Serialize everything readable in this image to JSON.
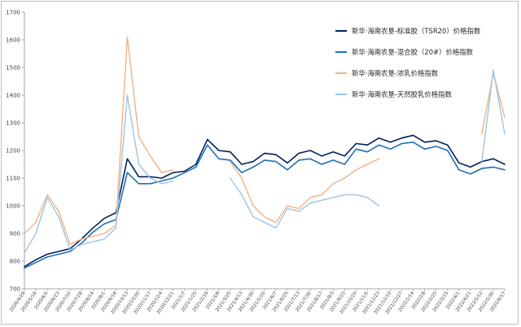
{
  "chart_data": {
    "type": "line",
    "title": "",
    "xlabel": "",
    "ylabel": "",
    "ylim": [
      700,
      1700
    ],
    "yticks": [
      700,
      800,
      900,
      1000,
      1100,
      1200,
      1300,
      1400,
      1500,
      1600,
      1700
    ],
    "grid": false,
    "legend_position": "top-right",
    "x_tick_labels": [
      "2020/4/28",
      "2020/5/18",
      "2020/6/5",
      "2020/6/23",
      "2020/7/10",
      "2020/7/28",
      "2020/8/14",
      "2020/9/1",
      "2020/9/18",
      "2020/10/13",
      "2020/10/30",
      "2020/11/17",
      "2020/12/4",
      "2020/12/21",
      "2021/1/7",
      "2021/1/25",
      "2021/2/18",
      "2021/3/8",
      "2021/3/25",
      "2021/4/13",
      "2021/4/30",
      "2021/5/20",
      "2021/6/7",
      "2021/6/25",
      "2021/7/13",
      "2021/7/30",
      "2021/8/17",
      "2021/9/3",
      "2021/9/23",
      "2021/10/20",
      "2021/11/5",
      "2021/11/23",
      "2021/12/10",
      "2021/12/27",
      "2022/1/14",
      "2022/2/8",
      "2022/2/25",
      "2022/3/15",
      "2022/4/1",
      "2022/4/21",
      "2022/5/12",
      "2022/5/30",
      "2022/6/17"
    ],
    "x_index_range": [
      0,
      42
    ],
    "series": [
      {
        "name": "新华·海南农垦-标准胶（TSR20）价格指数",
        "color": "#002060",
        "x": [
          0,
          1,
          2,
          3,
          4,
          5,
          6,
          7,
          8,
          9,
          10,
          11,
          12,
          13,
          14,
          15,
          16,
          17,
          18,
          19,
          20,
          21,
          22,
          23,
          24,
          25,
          26,
          27,
          28,
          29,
          30,
          31,
          32,
          33,
          34,
          35,
          36,
          37,
          38,
          39,
          40,
          41,
          42
        ],
        "values": [
          780,
          805,
          825,
          835,
          845,
          880,
          920,
          955,
          975,
          1170,
          1105,
          1105,
          1100,
          1120,
          1125,
          1150,
          1240,
          1200,
          1195,
          1150,
          1160,
          1190,
          1185,
          1155,
          1190,
          1200,
          1180,
          1195,
          1180,
          1225,
          1220,
          1245,
          1230,
          1245,
          1255,
          1230,
          1235,
          1220,
          1155,
          1140,
          1160,
          1170,
          1150
        ]
      },
      {
        "name": "新华·海南农垦-混合胶（20#）价格指数",
        "color": "#1f6fb6",
        "x": [
          0,
          1,
          2,
          3,
          4,
          5,
          6,
          7,
          8,
          9,
          10,
          11,
          12,
          13,
          14,
          15,
          16,
          17,
          18,
          19,
          20,
          21,
          22,
          23,
          24,
          25,
          26,
          27,
          28,
          29,
          30,
          31,
          32,
          33,
          34,
          35,
          36,
          37,
          38,
          39,
          40,
          41,
          42
        ],
        "values": [
          775,
          795,
          815,
          825,
          835,
          865,
          905,
          935,
          950,
          1120,
          1080,
          1080,
          1090,
          1100,
          1120,
          1140,
          1220,
          1170,
          1165,
          1120,
          1140,
          1165,
          1160,
          1130,
          1165,
          1170,
          1150,
          1165,
          1150,
          1205,
          1195,
          1220,
          1205,
          1225,
          1230,
          1205,
          1215,
          1200,
          1130,
          1115,
          1135,
          1140,
          1130
        ]
      },
      {
        "name": "新华·海南农垦-浓乳价格指数",
        "color": "#f4b183",
        "x": [
          0,
          1,
          2,
          3,
          4,
          5,
          6,
          7,
          8,
          9,
          10,
          11,
          12,
          13,
          14,
          15,
          16,
          17,
          18,
          19,
          20,
          21,
          22,
          23,
          24,
          25,
          26,
          27,
          28,
          29,
          30,
          31,
          32,
          33,
          34,
          35,
          36,
          37,
          38,
          39,
          40,
          41,
          42
        ],
        "values": [
          900,
          940,
          1040,
          980,
          860,
          880,
          890,
          900,
          930,
          1610,
          1250,
          1180,
          1120,
          1130,
          null,
          null,
          null,
          null,
          1160,
          1100,
          1000,
          960,
          940,
          1000,
          990,
          1030,
          1040,
          1080,
          1100,
          1130,
          1150,
          1170,
          null,
          null,
          null,
          null,
          null,
          null,
          null,
          null,
          1260,
          1480,
          1320
        ]
      },
      {
        "name": "新华·海南农垦-天然胶乳价格指数",
        "color": "#9dc3e6",
        "x": [
          0,
          1,
          2,
          3,
          4,
          5,
          6,
          7,
          8,
          9,
          10,
          11,
          12,
          13,
          14,
          15,
          16,
          17,
          18,
          19,
          20,
          21,
          22,
          23,
          24,
          25,
          26,
          27,
          28,
          29,
          30,
          31,
          32,
          33,
          34,
          35,
          36,
          37,
          38,
          39,
          40,
          41,
          42
        ],
        "values": [
          830,
          900,
          1030,
          960,
          840,
          860,
          870,
          880,
          920,
          1400,
          1150,
          1100,
          1080,
          1090,
          null,
          null,
          null,
          null,
          1100,
          1040,
          960,
          940,
          920,
          990,
          980,
          1010,
          1020,
          1030,
          1040,
          1040,
          1030,
          1000,
          null,
          null,
          null,
          null,
          null,
          null,
          null,
          null,
          1160,
          1490,
          1260
        ]
      }
    ]
  }
}
